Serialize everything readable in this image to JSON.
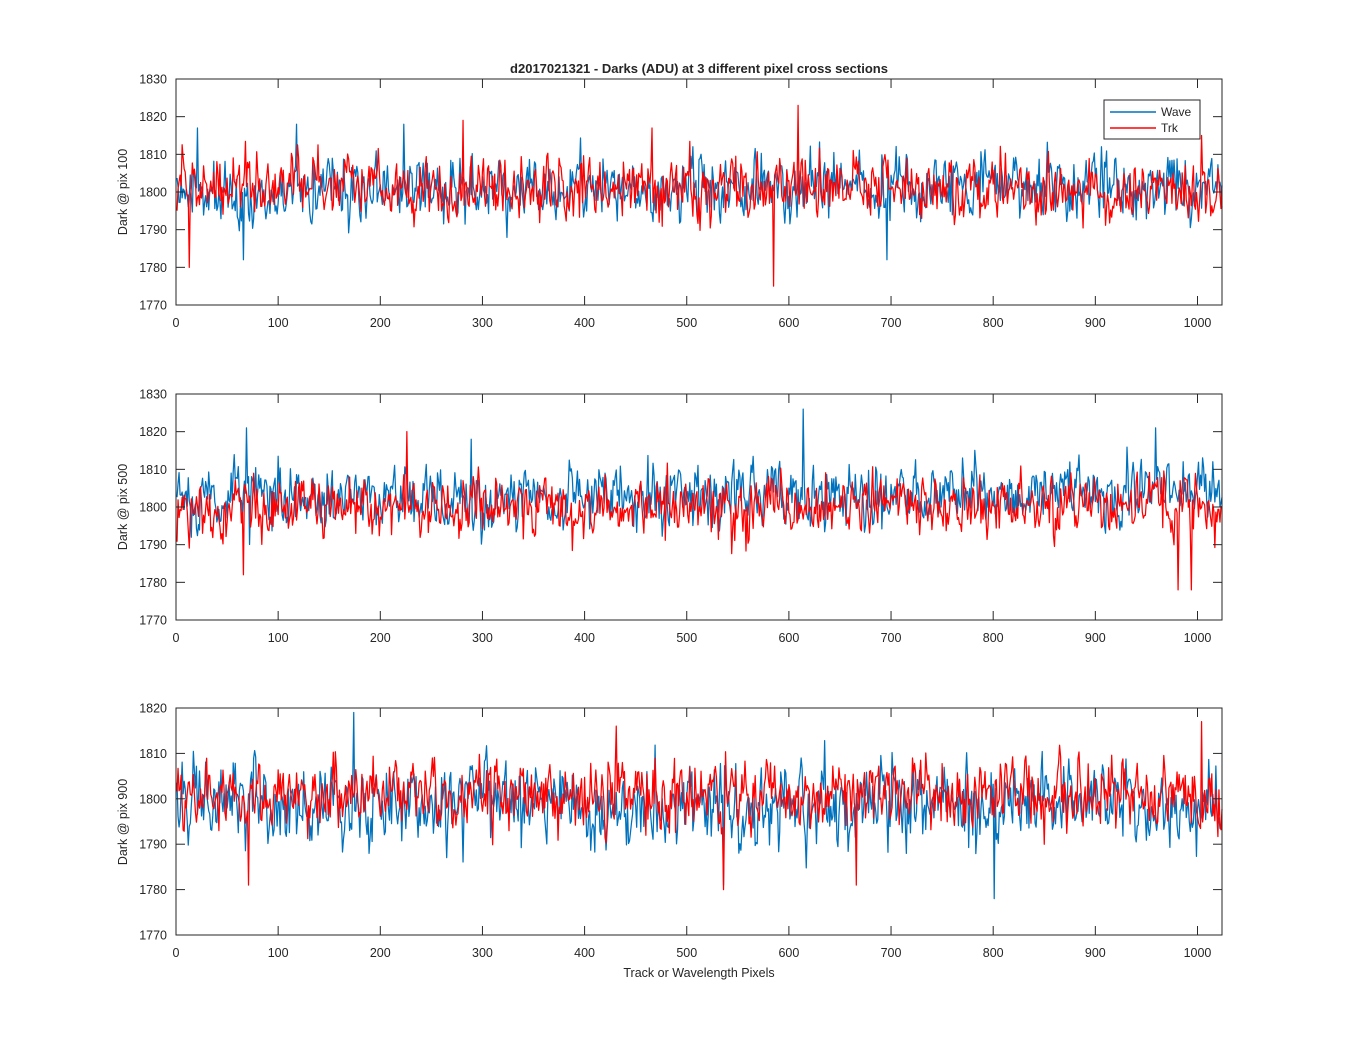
{
  "figure": {
    "title": "d2017021321 - Darks (ADU) at 3 different pixel cross sections",
    "xlabel": "Track or Wavelength Pixels"
  },
  "legend": {
    "position": "top-right",
    "entries": [
      {
        "name": "Wave",
        "color": "#0072BD"
      },
      {
        "name": "Trk",
        "color": "#FF0000"
      }
    ]
  },
  "chart_data": [
    {
      "type": "line",
      "ylabel": "Dark @ pix 100",
      "xlim": [
        0,
        1024
      ],
      "ylim": [
        1770,
        1830
      ],
      "xticks": [
        0,
        100,
        200,
        300,
        400,
        500,
        600,
        700,
        800,
        900,
        1000
      ],
      "yticks": [
        1770,
        1780,
        1790,
        1800,
        1810,
        1820,
        1830
      ],
      "series": [
        {
          "name": "Wave",
          "color": "#0072BD",
          "n_points": 1024,
          "mean": 1801,
          "noise": 4.2,
          "trend": 0.0015,
          "seed": 11,
          "peaks": [
            [
              20,
              1817
            ],
            [
              65,
              1782
            ],
            [
              117,
              1818
            ],
            [
              222,
              1818
            ],
            [
              505,
              1812
            ],
            [
              695,
              1782
            ],
            [
              905,
              1812
            ]
          ]
        },
        {
          "name": "Trk",
          "color": "#FF0000",
          "n_points": 1024,
          "mean": 1801,
          "noise": 4.0,
          "trend": -0.0025,
          "seed": 23,
          "peaks": [
            [
              12,
              1780
            ],
            [
              280,
              1819
            ],
            [
              465,
              1817
            ],
            [
              584,
              1775
            ],
            [
              608,
              1823
            ],
            [
              1003,
              1815
            ]
          ]
        }
      ]
    },
    {
      "type": "line",
      "ylabel": "Dark @ pix 500",
      "xlim": [
        0,
        1024
      ],
      "ylim": [
        1770,
        1830
      ],
      "xticks": [
        0,
        100,
        200,
        300,
        400,
        500,
        600,
        700,
        800,
        900,
        1000
      ],
      "yticks": [
        1770,
        1780,
        1790,
        1800,
        1810,
        1820,
        1830
      ],
      "series": [
        {
          "name": "Wave",
          "color": "#0072BD",
          "n_points": 1024,
          "mean": 1803,
          "noise": 4.3,
          "trend": 0.0015,
          "seed": 37,
          "peaks": [
            [
              68,
              1821
            ],
            [
              288,
              1818
            ],
            [
              613,
              1826
            ],
            [
              958,
              1821
            ]
          ]
        },
        {
          "name": "Trk",
          "color": "#FF0000",
          "n_points": 1024,
          "mean": 1800,
          "noise": 4.0,
          "trend": 0.0,
          "seed": 51,
          "peaks": [
            [
              65,
              1782
            ],
            [
              225,
              1820
            ],
            [
              980,
              1778
            ],
            [
              993,
              1778
            ]
          ]
        }
      ]
    },
    {
      "type": "line",
      "ylabel": "Dark @ pix 900",
      "xlim": [
        0,
        1024
      ],
      "ylim": [
        1770,
        1820
      ],
      "xticks": [
        0,
        100,
        200,
        300,
        400,
        500,
        600,
        700,
        800,
        900,
        1000
      ],
      "yticks": [
        1770,
        1780,
        1790,
        1800,
        1810,
        1820
      ],
      "series": [
        {
          "name": "Wave",
          "color": "#0072BD",
          "n_points": 1024,
          "mean": 1799,
          "noise": 4.5,
          "trend": 0.0,
          "seed": 73,
          "peaks": [
            [
              173,
              1819
            ],
            [
              535,
              1781
            ],
            [
              800,
              1778
            ]
          ]
        },
        {
          "name": "Trk",
          "color": "#FF0000",
          "n_points": 1024,
          "mean": 1801,
          "noise": 3.8,
          "trend": -0.001,
          "seed": 89,
          "peaks": [
            [
              70,
              1781
            ],
            [
              430,
              1816
            ],
            [
              535,
              1780
            ],
            [
              665,
              1781
            ],
            [
              1003,
              1817
            ]
          ]
        }
      ]
    }
  ]
}
